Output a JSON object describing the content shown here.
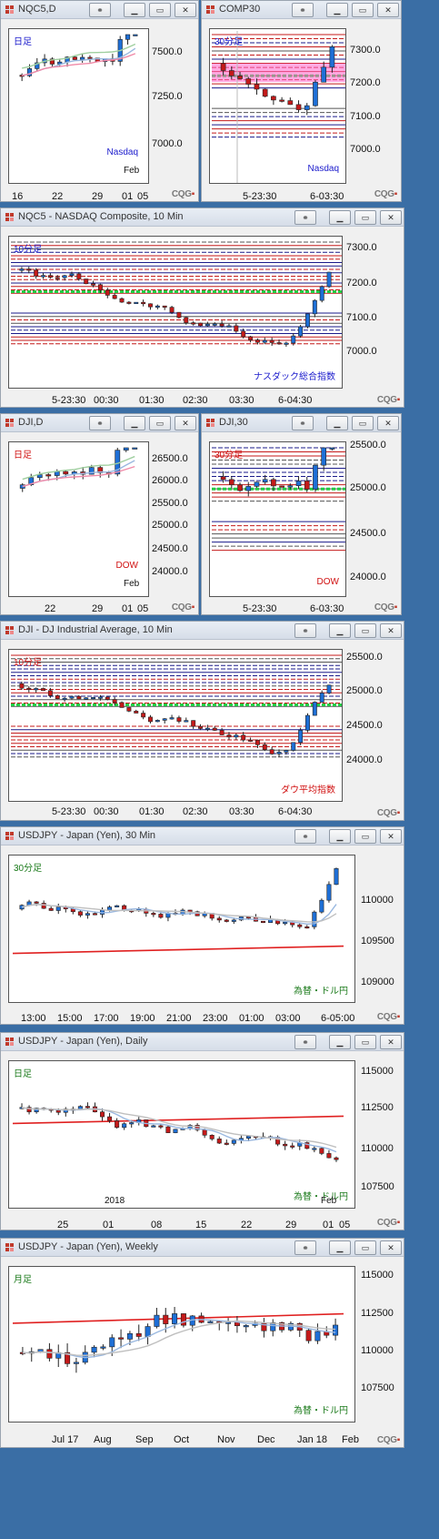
{
  "colors": {
    "up": "#1e6fd6",
    "down": "#c41a1a",
    "pink_band": "#ff66cc",
    "green_line": "#22cc44",
    "red_ma": "#e02020",
    "desktop": "#3a6ea5"
  },
  "icons": [
    "chart-icon",
    "link-icon",
    "minimize-icon",
    "maximize-icon",
    "close-icon"
  ],
  "brand": "CQG",
  "panels": [
    {
      "title": "NQC5,D",
      "label_tl": "日足",
      "label_br": "Nasdaq",
      "top_label": "Feb",
      "yticks": [
        "7500.0",
        "7250.0",
        "7000.0"
      ],
      "xticks": [
        "16",
        "22",
        "29",
        "01",
        "05"
      ]
    },
    {
      "title": "COMP30",
      "label_tl": "30分足",
      "label_br": "Nasdaq",
      "yticks": [
        "7300.0",
        "7200.0",
        "7100.0",
        "7000.0"
      ],
      "xticks": [
        "5-23:30",
        "6-03:30"
      ]
    },
    {
      "title": "NQC5 - NASDAQ Composite, 10 Min",
      "label_tl": "10分足",
      "label_br": "ナスダック総合指数",
      "yticks": [
        "7300.0",
        "7200.0",
        "7100.0",
        "7000.0"
      ],
      "xticks": [
        "5-23:30",
        "00:30",
        "01:30",
        "02:30",
        "03:30",
        "6-04:30"
      ]
    },
    {
      "title": "DJI,D",
      "label_tl": "日足",
      "label_br": "DOW",
      "top_label": "Feb",
      "yticks": [
        "26500.0",
        "26000.0",
        "25500.0",
        "25000.0",
        "24500.0",
        "24000.0"
      ],
      "xticks": [
        "22",
        "29",
        "01",
        "05"
      ]
    },
    {
      "title": "DJI,30",
      "label_tl": "30分足",
      "label_br": "DOW",
      "yticks": [
        "25500.0",
        "25000.0",
        "24500.0",
        "24000.0"
      ],
      "xticks": [
        "5-23:30",
        "6-03:30"
      ]
    },
    {
      "title": "DJI - DJ Industrial Average, 10 Min",
      "label_tl": "10分足",
      "label_br": "ダウ平均指数",
      "yticks": [
        "25500.0",
        "25000.0",
        "24500.0",
        "24000.0"
      ],
      "xticks": [
        "5-23:30",
        "00:30",
        "01:30",
        "02:30",
        "03:30",
        "6-04:30"
      ]
    },
    {
      "title": "USDJPY - Japan (Yen), 30 Min",
      "label_tl": "30分足",
      "label_br": "為替・ドル円",
      "yticks": [
        "110000",
        "109500",
        "109000"
      ],
      "xticks": [
        "13:00",
        "15:00",
        "17:00",
        "19:00",
        "21:00",
        "23:00",
        "01:00",
        "03:00",
        "6-05:00"
      ]
    },
    {
      "title": "USDJPY - Japan (Yen), Daily",
      "label_tl": "日足",
      "label_br": "為替・ドル円",
      "top_label": "Feb",
      "year_label": "2018",
      "yticks": [
        "115000",
        "112500",
        "110000",
        "107500"
      ],
      "xticks": [
        "25",
        "01",
        "08",
        "15",
        "22",
        "29",
        "01",
        "05"
      ]
    },
    {
      "title": "USDJPY - Japan (Yen), Weekly",
      "label_tl": "月足",
      "label_br": "為替・ドル円",
      "yticks": [
        "115000",
        "112500",
        "110000",
        "107500"
      ],
      "xticks": [
        "Jul 17",
        "Aug",
        "Sep",
        "Oct",
        "Nov",
        "Dec",
        "Jan 18",
        "Feb"
      ]
    }
  ]
}
